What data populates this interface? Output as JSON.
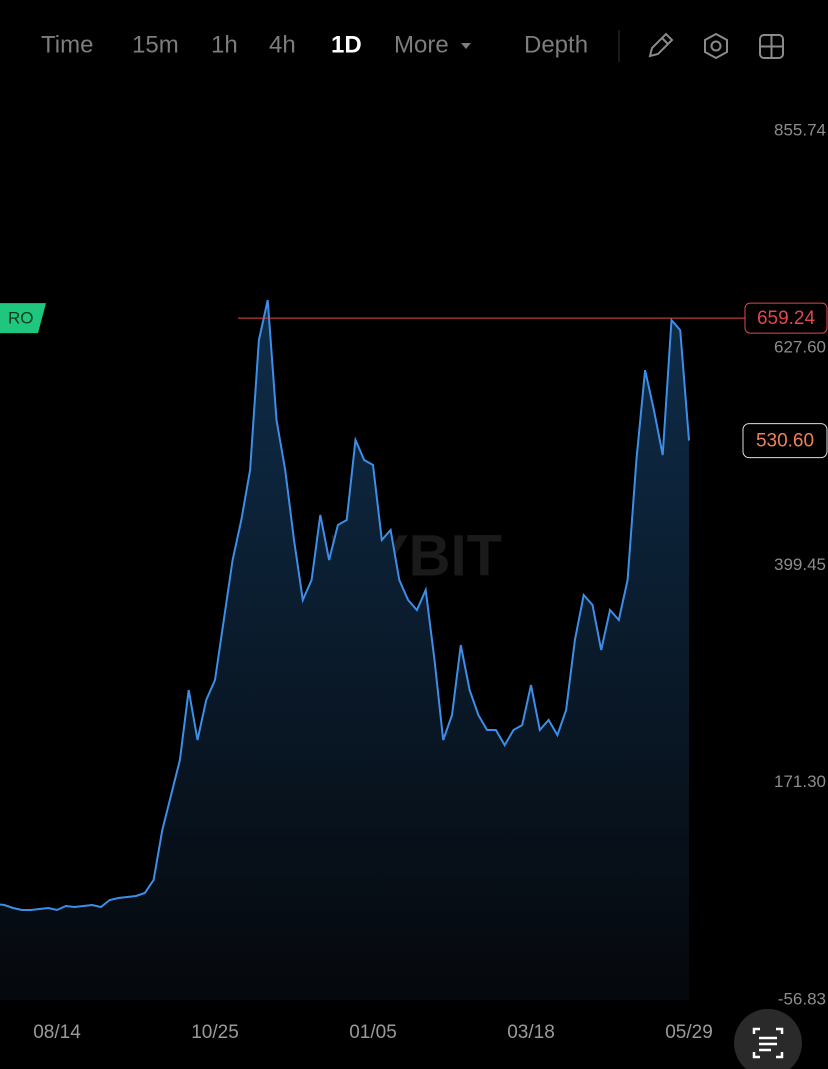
{
  "toolbar": {
    "items": [
      "Time",
      "15m",
      "1h",
      "4h",
      "1D",
      "More",
      "Depth"
    ],
    "active": 4
  },
  "chart_data": {
    "type": "area",
    "watermark": "BYBIT",
    "color": "#3d8ee8",
    "categories": [
      null,
      null,
      null,
      null,
      null,
      null,
      null,
      "08/14",
      null,
      null,
      null,
      null,
      null,
      null,
      null,
      null,
      null,
      null,
      null,
      null,
      null,
      null,
      null,
      null,
      null,
      "10/25",
      null,
      null,
      null,
      null,
      null,
      null,
      null,
      null,
      null,
      null,
      null,
      null,
      null,
      null,
      null,
      null,
      null,
      "01/05",
      null,
      null,
      null,
      null,
      null,
      null,
      null,
      null,
      null,
      null,
      null,
      null,
      null,
      null,
      null,
      null,
      null,
      "03/18",
      null,
      null,
      null,
      null,
      null,
      null,
      null,
      null,
      null,
      null,
      null,
      null,
      null,
      null,
      null,
      null,
      null,
      "05/29"
    ],
    "values": [
      44.0,
      42.9,
      39.8,
      37.7,
      37.7,
      38.7,
      39.8,
      37.7,
      41.9,
      40.8,
      41.9,
      42.9,
      40.8,
      48.2,
      50.3,
      51.3,
      52.4,
      55.5,
      69.2,
      121.7,
      158.4,
      195.2,
      268.7,
      216.2,
      258.2,
      279.2,
      342.2,
      405.2,
      447.2,
      499.7,
      636.2,
      678.2,
      552.2,
      499.7,
      426.2,
      363.2,
      384.2,
      452.5,
      405.2,
      442.0,
      447.2,
      531.2,
      510.2,
      505.0,
      426.2,
      436.7,
      384.2,
      363.2,
      352.7,
      373.7,
      300.2,
      216.2,
      242.4,
      315.9,
      268.7,
      242.4,
      226.7,
      226.7,
      210.9,
      226.7,
      231.9,
      273.9,
      226.7,
      237.2,
      221.4,
      247.7,
      321.2,
      368.5,
      358.0,
      310.7,
      352.7,
      342.2,
      384.2,
      510.2,
      604.7,
      562.7,
      515.5,
      657.2,
      646.7,
      530.6
    ],
    "ylim": [
      -56.83,
      855.74
    ],
    "yticks": [
      855.74,
      {
        "value": 627.6,
        "label": "627.60"
      },
      399.45,
      {
        "value": 171.3,
        "label": "171.30"
      },
      -56.83
    ],
    "price_line": {
      "label": "RO",
      "value": 659.24,
      "color": "#e0484a"
    },
    "last_price": {
      "value": 530.6,
      "label": "530.60"
    }
  }
}
